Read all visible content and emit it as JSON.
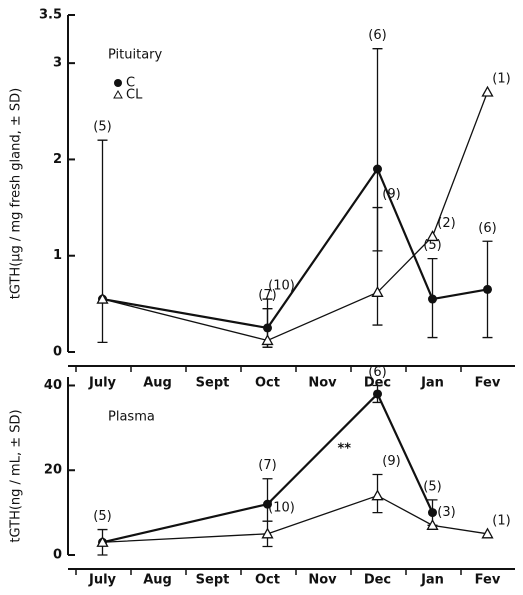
{
  "chart_data": [
    {
      "type": "line",
      "panel_label": "Pituitary",
      "y_label": "tGTH(µg / mg fresh gland, ± SD)",
      "categories": [
        "July",
        "Aug",
        "Sept",
        "Oct",
        "Nov",
        "Dec",
        "Jan",
        "Fev"
      ],
      "ylim": [
        0,
        3.5
      ],
      "yticks": [
        0,
        1,
        2,
        3,
        3.5
      ],
      "legend": "upper left",
      "series": [
        {
          "name": "C",
          "color": "#111111",
          "marker": "filled-circle",
          "values": [
            0.55,
            null,
            null,
            0.25,
            null,
            1.9,
            0.55,
            0.65
          ],
          "error_plus": [
            1.65,
            null,
            null,
            0.2,
            null,
            1.25,
            0.42,
            0.5
          ],
          "error_minus": [
            0.45,
            null,
            null,
            0.2,
            null,
            0.85,
            0.4,
            0.5
          ],
          "n_labels": [
            "(5)",
            null,
            null,
            "(7)",
            null,
            "(6)",
            "(5)",
            "(6)"
          ]
        },
        {
          "name": "CL",
          "color": "#111111",
          "marker": "open-triangle",
          "values": [
            0.55,
            null,
            null,
            0.12,
            null,
            0.62,
            1.2,
            2.7
          ],
          "error_plus": [
            null,
            null,
            null,
            0.43,
            null,
            0.88,
            null,
            null
          ],
          "error_minus": [
            null,
            null,
            null,
            0.07,
            null,
            0.34,
            null,
            null
          ],
          "n_labels": [
            null,
            null,
            null,
            "(10)",
            null,
            "(9)",
            "(2)",
            "(1)"
          ]
        }
      ]
    },
    {
      "type": "line",
      "panel_label": "Plasma",
      "y_label": "tGTH(ng / mL, ± SD)",
      "categories": [
        "July",
        "Aug",
        "Sept",
        "Oct",
        "Nov",
        "Dec",
        "Jan",
        "Fev"
      ],
      "ylim": [
        0,
        42
      ],
      "yticks": [
        0,
        20,
        40
      ],
      "annotation": "**",
      "series": [
        {
          "name": "C",
          "color": "#111111",
          "marker": "filled-circle",
          "values": [
            3,
            null,
            null,
            12,
            null,
            38,
            10,
            null
          ],
          "error_plus": [
            3,
            null,
            null,
            6,
            null,
            2,
            3,
            null
          ],
          "error_minus": [
            3,
            null,
            null,
            4,
            null,
            2,
            3,
            null
          ],
          "n_labels": [
            "(5)",
            null,
            null,
            "(7)",
            null,
            "(6)",
            "(5)",
            null
          ]
        },
        {
          "name": "CL",
          "color": "#111111",
          "marker": "open-triangle",
          "values": [
            3,
            null,
            null,
            5,
            null,
            14,
            7,
            5
          ],
          "error_plus": [
            null,
            null,
            null,
            3,
            null,
            5,
            null,
            null
          ],
          "error_minus": [
            null,
            null,
            null,
            3,
            null,
            4,
            null,
            null
          ],
          "n_labels": [
            null,
            null,
            null,
            "(10)",
            null,
            "(9)",
            "(3)",
            "(1)"
          ]
        }
      ]
    }
  ]
}
